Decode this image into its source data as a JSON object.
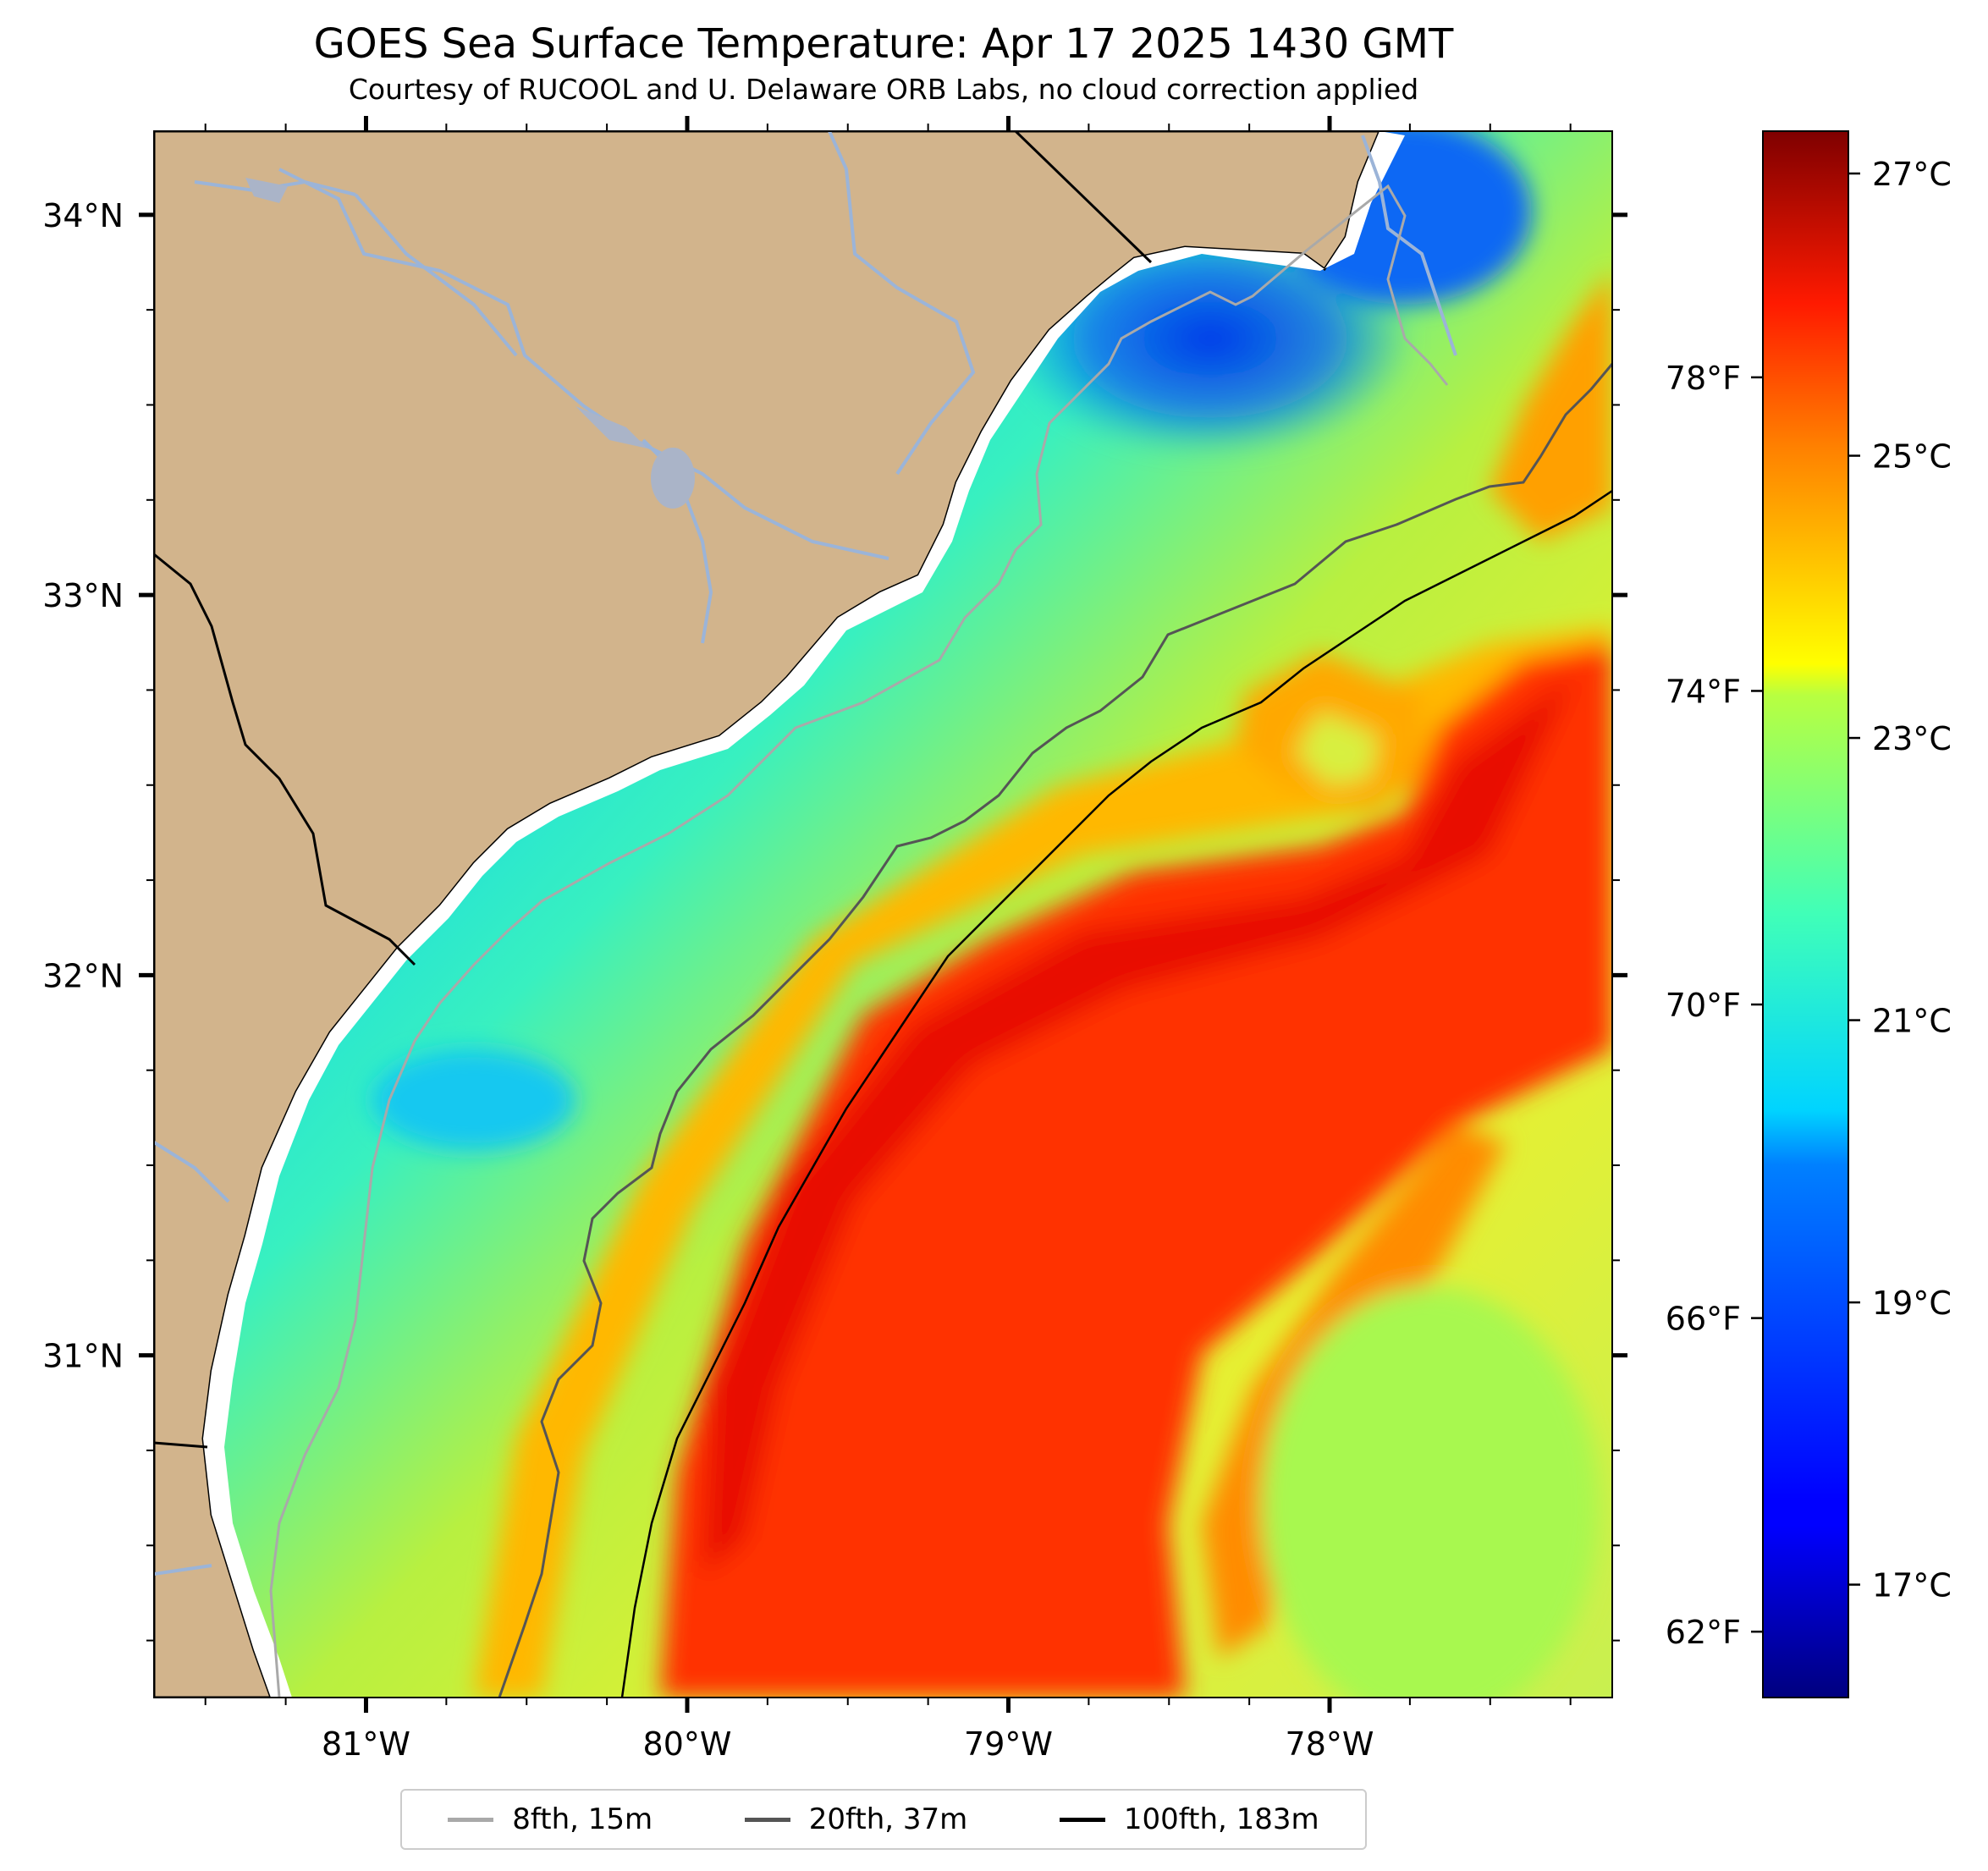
{
  "title": "GOES Sea Surface Temperature: Apr 17 2025 1430 GMT",
  "subtitle": "Courtesy of RUCOOL and U. Delaware ORB Labs, no cloud correction applied",
  "map": {
    "lon_range": [
      -81.66,
      -77.12
    ],
    "lat_range": [
      30.1,
      34.22
    ],
    "lon_ticks": [
      {
        "value": -81,
        "label": "81°W"
      },
      {
        "value": -80,
        "label": "80°W"
      },
      {
        "value": -79,
        "label": "79°W"
      },
      {
        "value": -78,
        "label": "78°W"
      }
    ],
    "lat_ticks": [
      {
        "value": 34,
        "label": "34°N"
      },
      {
        "value": 33,
        "label": "33°N"
      },
      {
        "value": 32,
        "label": "32°N"
      },
      {
        "value": 31,
        "label": "31°N"
      }
    ],
    "land_color": "#d2b48c",
    "water_no_data_color": "#ffffff"
  },
  "colorbar": {
    "range_c": [
      16.2,
      27.3
    ],
    "celsius_ticks": [
      {
        "value": 17,
        "label": "17°C"
      },
      {
        "value": 19,
        "label": "19°C"
      },
      {
        "value": 21,
        "label": "21°C"
      },
      {
        "value": 23,
        "label": "23°C"
      },
      {
        "value": 25,
        "label": "25°C"
      },
      {
        "value": 27,
        "label": "27°C"
      }
    ],
    "fahrenheit_ticks": [
      {
        "value": 62,
        "label": "62°F"
      },
      {
        "value": 66,
        "label": "66°F"
      },
      {
        "value": 70,
        "label": "70°F"
      },
      {
        "value": 74,
        "label": "74°F"
      },
      {
        "value": 78,
        "label": "78°F"
      }
    ],
    "colormap": "jet"
  },
  "legend": {
    "items": [
      {
        "label": "8fth, 15m",
        "color": "#a9a9a9"
      },
      {
        "label": "20fth, 37m",
        "color": "#555555"
      },
      {
        "label": "100fth, 183m",
        "color": "#000000"
      }
    ]
  }
}
